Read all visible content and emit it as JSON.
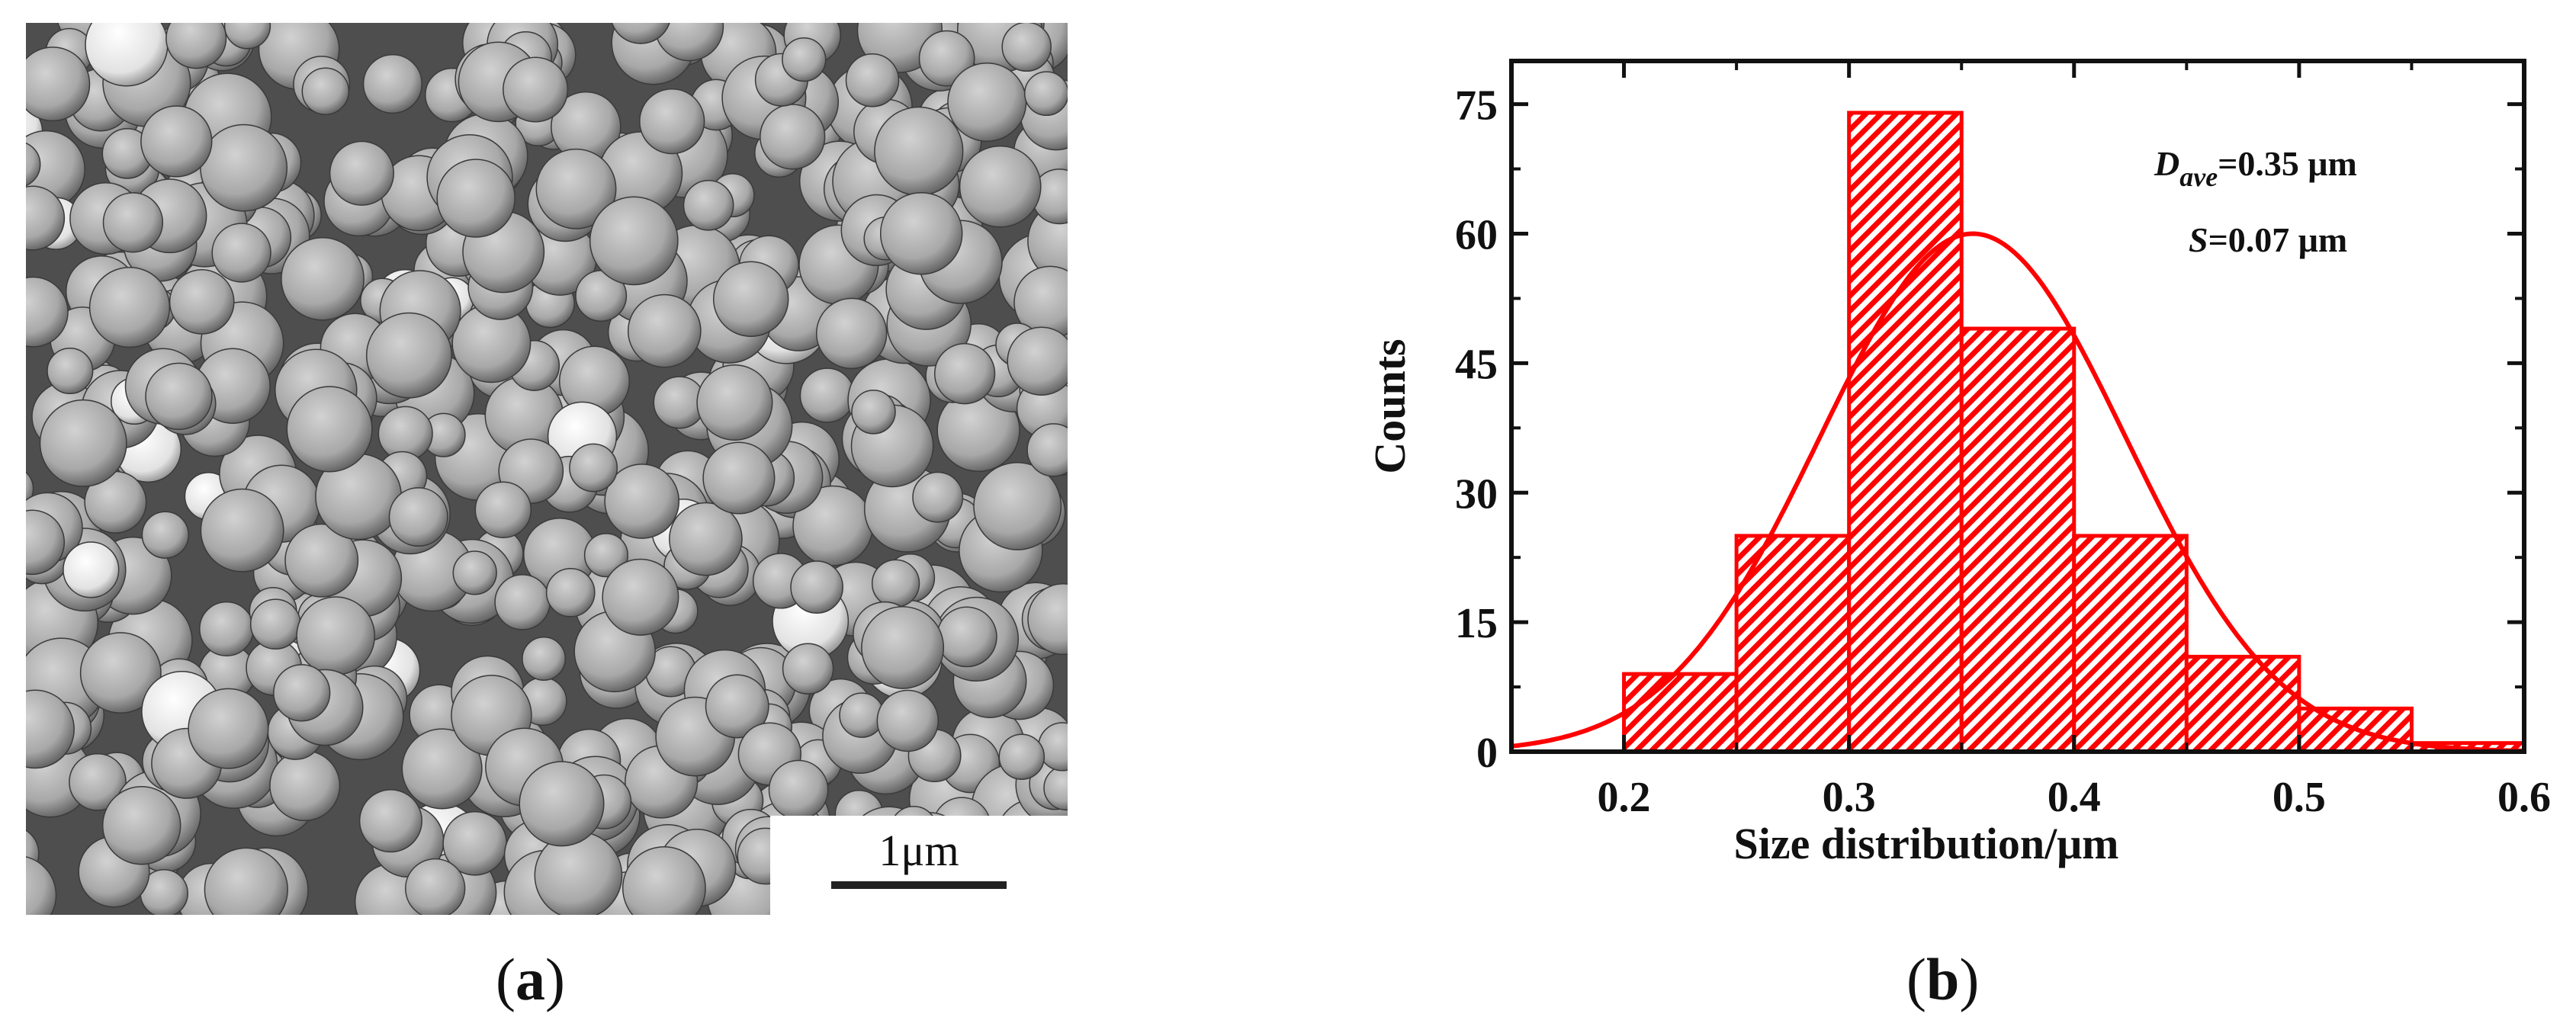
{
  "panels": {
    "a": {
      "label_open": "(",
      "label_letter": "a",
      "label_close": ")",
      "scale_bar": "1μm"
    },
    "b": {
      "label_open": "(",
      "label_letter": "b",
      "label_close": ")"
    }
  },
  "chart_data": {
    "type": "bar",
    "bin_edges": [
      0.2,
      0.25,
      0.3,
      0.35,
      0.4,
      0.45,
      0.5,
      0.55,
      0.6
    ],
    "values": [
      9,
      25,
      74,
      49,
      25,
      11,
      5,
      1
    ],
    "fit": {
      "type": "gaussian",
      "mean": 0.355,
      "peak": 60,
      "sigma": 0.068
    },
    "xlabel": "Size distribution/μm",
    "ylabel": "Counts",
    "xlim": [
      0.15,
      0.6
    ],
    "ylim": [
      0,
      80
    ],
    "xticks": [
      "0.2",
      "0.3",
      "0.4",
      "0.5",
      "0.6"
    ],
    "yticks": [
      "0",
      "15",
      "30",
      "45",
      "60",
      "75"
    ],
    "annotations": {
      "d_symbol": "D",
      "d_sub": "ave",
      "d_value": "=0.35 μm",
      "s_symbol": "S",
      "s_value": "=0.07 μm"
    },
    "grid": false,
    "color": "#ff0000"
  }
}
